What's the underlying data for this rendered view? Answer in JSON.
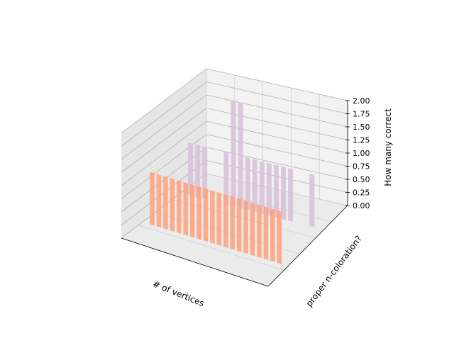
{
  "chart_data": {
    "type": "bar3d",
    "title": "",
    "xlabel": "# of vertices",
    "ylabel": "proper n-coloration?",
    "zlabel": "How many correct",
    "zlim": [
      0,
      2
    ],
    "z_ticks": [
      "0.00",
      "0.25",
      "0.50",
      "0.75",
      "1.00",
      "1.25",
      "1.50",
      "1.75",
      "2.00"
    ],
    "grid": true,
    "series": [
      {
        "row": "front",
        "color": "#ffa07a",
        "values": [
          1,
          1,
          1,
          1,
          1,
          1,
          1,
          1,
          1,
          1,
          1,
          1,
          1,
          1,
          1,
          1,
          1,
          1,
          1,
          1
        ]
      },
      {
        "row": "back",
        "color": "#d8bfd8",
        "values": [
          1,
          1,
          1,
          0,
          0,
          1,
          2,
          2,
          1,
          1,
          1,
          1,
          1,
          1,
          1,
          0,
          0,
          1
        ]
      }
    ],
    "colors": {
      "front": "#ffa07a",
      "back": "#d8bfd8",
      "pane_back": "#f2f2f2",
      "pane_side": "#e6e6e6",
      "pane_floor": "#ebebeb"
    }
  }
}
